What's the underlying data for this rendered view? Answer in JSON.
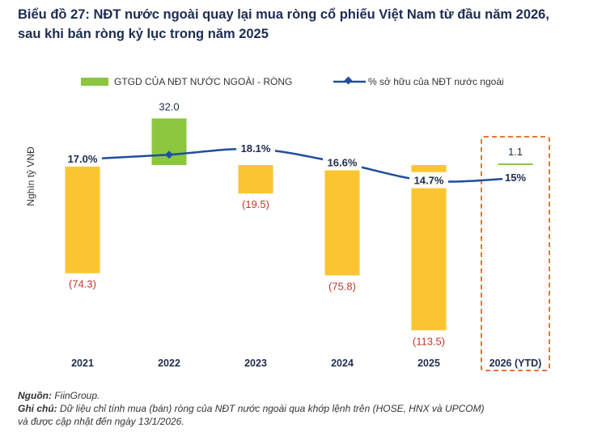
{
  "title": {
    "line1": "Biểu đồ 27: NĐT nước ngoài quay lại mua ròng cổ phiếu Việt Nam từ đầu năm 2026,",
    "line2": "sau khi bán ròng kỷ lục trong năm 2025"
  },
  "footer": {
    "source_label": "Nguồn:",
    "source_text": " FiinGroup.",
    "note_label": "Ghi chú:",
    "note_text": " Dữ liệu chỉ tính mua (bán) ròng của NĐT nước ngoài qua khớp lệnh trên (HOSE, HNX và UPCOM)",
    "note_text2": "và được cập nhật đến ngày 13/1/2026."
  },
  "colors": {
    "positive_bar": "#8cc63f",
    "negative_bar": "#fbc531",
    "line": "#1f4e9c",
    "negative_label": "#c0392b",
    "highlight_box": "#e8743b"
  },
  "chart_data": {
    "type": "bar+line",
    "categories": [
      "2021",
      "2022",
      "2023",
      "2024",
      "2025",
      "2026 (YTD)"
    ],
    "ylabel": "Nghìn tỷ VNĐ",
    "series": [
      {
        "name": "GTGD CỦA NĐT NƯỚC NGOÀI - RÒNG",
        "type": "bar",
        "values": [
          -74.3,
          32.0,
          -19.5,
          -75.8,
          -113.5,
          1.1
        ],
        "labels": [
          "(74.3)",
          "32.0",
          "(19.5)",
          "(75.8)",
          "(113.5)",
          "1.1"
        ]
      },
      {
        "name": "% sở hữu của NĐT nước ngoài",
        "type": "line",
        "values": [
          17.0,
          17.5,
          18.1,
          16.6,
          14.7,
          15.0
        ],
        "labels": [
          "17.0%",
          "",
          "18.1%",
          "16.6%",
          "14.7%",
          "15%"
        ]
      }
    ],
    "highlighted_category": "2026 (YTD)",
    "legend_position": "top"
  }
}
